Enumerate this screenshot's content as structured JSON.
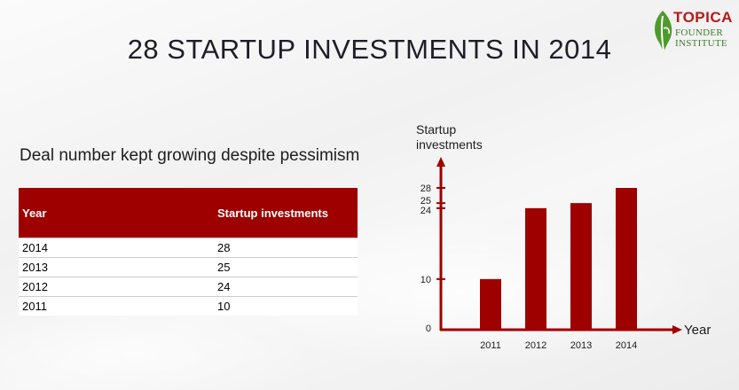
{
  "slide": {
    "title": "28 STARTUP INVESTMENTS IN 2014",
    "subtitle": "Deal number kept growing despite pessimism"
  },
  "logo": {
    "brand": "TOPICA",
    "line1": "FOUNDER",
    "line2": "INSTITUTE",
    "colors": {
      "brand": "#b31b1b",
      "leaf": "#4f9a2d"
    }
  },
  "table": {
    "headers": [
      "Year",
      "Startup investments"
    ],
    "rows": [
      [
        "2014",
        "28"
      ],
      [
        "2013",
        "25"
      ],
      [
        "2012",
        "24"
      ],
      [
        "2011",
        "10"
      ]
    ],
    "header_color": "#9e0000"
  },
  "chart_data": {
    "type": "bar",
    "categories": [
      "2011",
      "2012",
      "2013",
      "2014"
    ],
    "values": [
      10,
      24,
      25,
      28
    ],
    "ylabel": [
      "Startup",
      "investments"
    ],
    "xlabel": "Year",
    "yticks": [
      0,
      10,
      24,
      25,
      28
    ],
    "ylim": [
      0,
      28
    ],
    "color": "#9e0000",
    "grid": false,
    "legend": "none"
  }
}
